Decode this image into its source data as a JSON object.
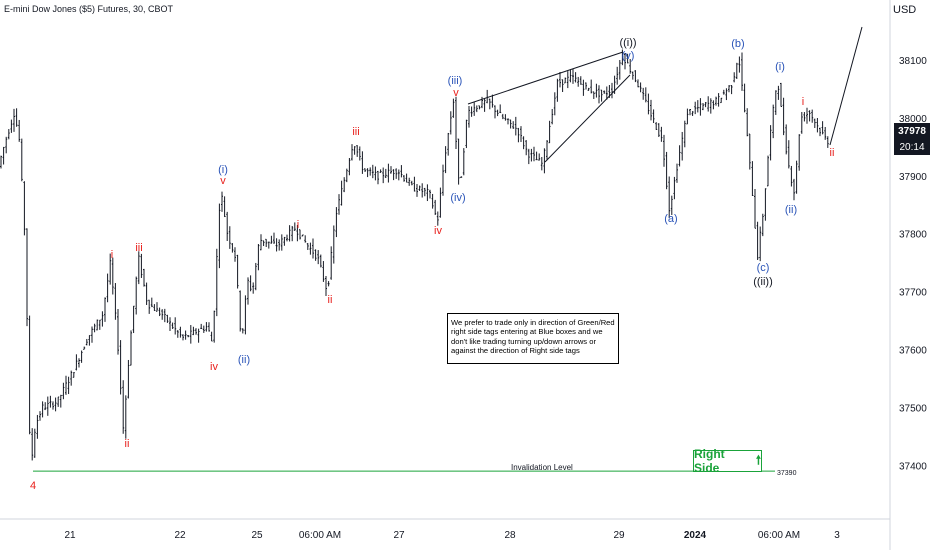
{
  "header": {
    "symbol": "E-mini Dow Jones ($5) Futures, 30, CBOT",
    "currency": "USD"
  },
  "chart_data": {
    "type": "candlestick",
    "y_range": [
      37320,
      38200
    ],
    "y_ticks": [
      37400,
      37500,
      37600,
      37700,
      37800,
      37900,
      38000,
      38100
    ],
    "x_ticks": [
      "21",
      "22",
      "25",
      "06:00 AM",
      "27",
      "28",
      "29",
      "2024",
      "06:00 AM",
      "3"
    ],
    "current_price": "37978",
    "countdown": "20:14",
    "invalidation": {
      "label": "Invalidation Level",
      "value": 37390,
      "value_label": "37390"
    },
    "key_prices": [
      {
        "label": "4",
        "value": 37390
      },
      {
        "label": "i",
        "value": 37750
      },
      {
        "label": "ii",
        "value": 37460
      },
      {
        "label": "iii",
        "value": 37760
      },
      {
        "label": "iv",
        "value": 37600
      },
      {
        "label": "(i)",
        "value": 37880
      },
      {
        "label": "(ii)",
        "value": 37610
      },
      {
        "label": "i",
        "value": 37810
      },
      {
        "label": "ii",
        "value": 37700
      },
      {
        "label": "iii",
        "value": 37960
      },
      {
        "label": "iv",
        "value": 37820
      },
      {
        "label": "v",
        "value": 38030
      },
      {
        "label": "(iii)",
        "value": 38030
      },
      {
        "label": "(iv)",
        "value": 37870
      },
      {
        "label": "(v)",
        "value": 38110
      },
      {
        "label": "((i))",
        "value": 38110
      },
      {
        "label": "(a)",
        "value": 37840
      },
      {
        "label": "(b)",
        "value": 38110
      },
      {
        "label": "(c)",
        "value": 37760
      },
      {
        "label": "((ii))",
        "value": 37760
      },
      {
        "label": "(i)",
        "value": 38070
      },
      {
        "label": "(ii)",
        "value": 37870
      },
      {
        "label": "i",
        "value": 38010
      },
      {
        "label": "ii",
        "value": 37960
      }
    ]
  },
  "annotations": {
    "wave_labels": [
      {
        "text": "4",
        "color": "#e8201c"
      },
      {
        "text": "i",
        "color": "#e8201c"
      },
      {
        "text": "ii",
        "color": "#e8201c"
      },
      {
        "text": "iii",
        "color": "#e8201c"
      },
      {
        "text": "iv",
        "color": "#e8201c"
      },
      {
        "text": "(i)",
        "color": "#2a54b8"
      },
      {
        "text": "v",
        "color": "#e8201c"
      },
      {
        "text": "(ii)",
        "color": "#2a54b8"
      },
      {
        "text": "i",
        "color": "#e8201c"
      },
      {
        "text": "ii",
        "color": "#e8201c"
      },
      {
        "text": "iii",
        "color": "#e8201c"
      },
      {
        "text": "iv",
        "color": "#e8201c"
      },
      {
        "text": "(iii)",
        "color": "#2a54b8"
      },
      {
        "text": "v",
        "color": "#e8201c"
      },
      {
        "text": "(iv)",
        "color": "#2a54b8"
      },
      {
        "text": "((i))",
        "color": "#131722"
      },
      {
        "text": "(v)",
        "color": "#2a54b8"
      },
      {
        "text": "(a)",
        "color": "#2a54b8"
      },
      {
        "text": "(b)",
        "color": "#2a54b8"
      },
      {
        "text": "(c)",
        "color": "#2a54b8"
      },
      {
        "text": "((ii))",
        "color": "#131722"
      },
      {
        "text": "(i)",
        "color": "#2a54b8"
      },
      {
        "text": "(ii)",
        "color": "#2a54b8"
      },
      {
        "text": "i",
        "color": "#e8201c"
      },
      {
        "text": "ii",
        "color": "#e8201c"
      }
    ],
    "note": "We prefer to trade only in direction of Green/Red right side tags entering at Blue boxes and we don't like trading turning up/down arrows or against the direction of Right side tags",
    "right_side_label": "Right Side",
    "right_side_arrow": "🠕"
  },
  "colors": {
    "candle": "#131722",
    "red_label": "#e8201c",
    "blue_label": "#2a54b8",
    "invalidation_line": "#1aa33a"
  }
}
